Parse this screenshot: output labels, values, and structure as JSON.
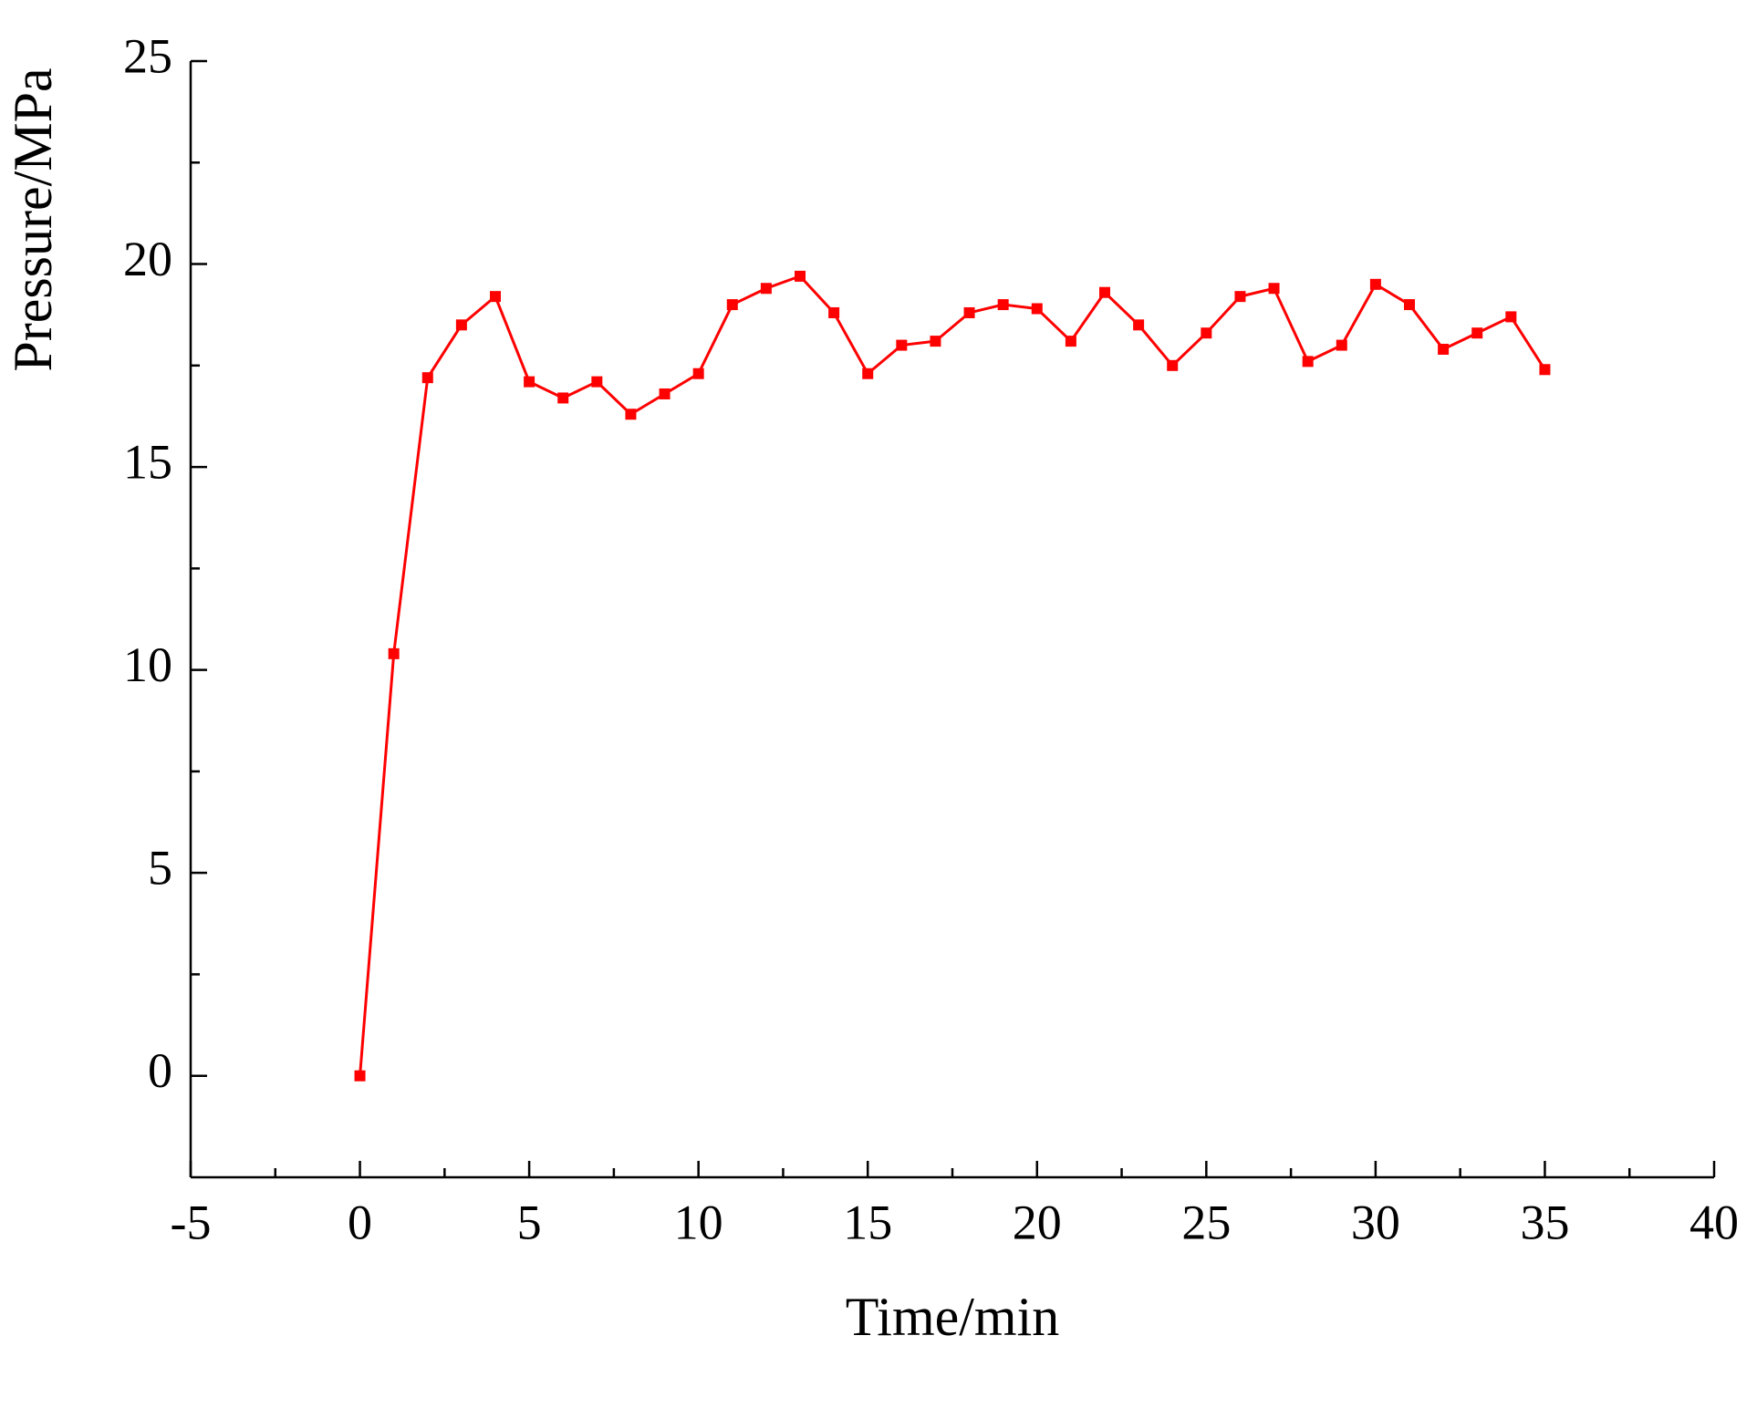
{
  "chart_data": {
    "type": "line",
    "x_label": "Time/min",
    "y_label": "Pressure/MPa",
    "series": [
      {
        "name": "Pressure",
        "color": "#ff0000",
        "x": [
          0,
          1,
          2,
          3,
          4,
          5,
          6,
          7,
          8,
          9,
          10,
          11,
          12,
          13,
          14,
          15,
          16,
          17,
          18,
          19,
          20,
          21,
          22,
          23,
          24,
          25,
          26,
          27,
          28,
          29,
          30,
          31,
          32,
          33,
          34,
          35
        ],
        "values": [
          0,
          10.4,
          17.2,
          18.5,
          19.2,
          17.1,
          16.7,
          17.1,
          16.3,
          16.8,
          17.3,
          19.0,
          19.4,
          19.7,
          18.8,
          17.3,
          18.0,
          18.1,
          18.8,
          19.0,
          18.9,
          18.1,
          19.3,
          18.5,
          17.5,
          18.3,
          19.2,
          19.4,
          17.6,
          18.0,
          19.5,
          19.0,
          17.9,
          18.3,
          18.7,
          17.4
        ]
      }
    ],
    "xlim": [
      -5,
      40
    ],
    "xticks": [
      -5,
      0,
      5,
      10,
      15,
      20,
      25,
      30,
      35,
      40
    ],
    "ylim": [
      -2.5,
      25
    ],
    "yticks": [
      0,
      5,
      10,
      15,
      20,
      25
    ],
    "grid": false
  }
}
